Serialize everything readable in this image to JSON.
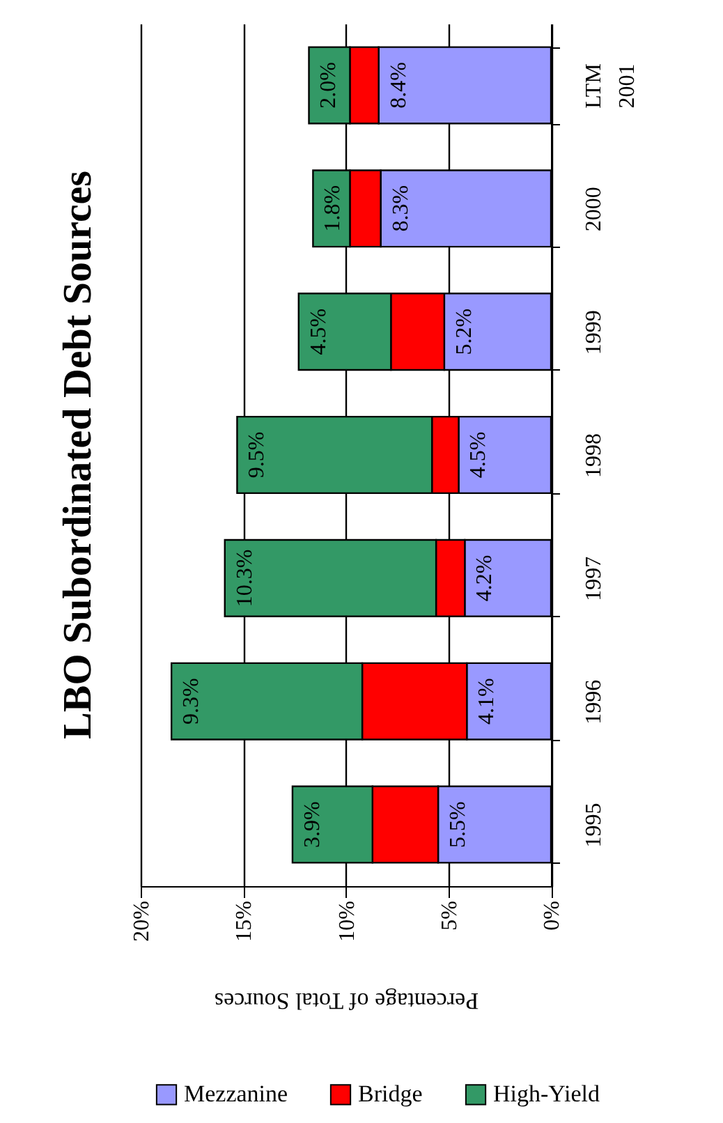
{
  "chart_data": {
    "type": "bar",
    "orientation": "horizontal",
    "title": "LBO Subordinated Debt Sources",
    "xlabel": "Percentage of Total Sources",
    "categories": [
      "LTM\n2001",
      "2000",
      "1999",
      "1998",
      "1997",
      "1996",
      "1995"
    ],
    "stacked": true,
    "series": [
      {
        "name": "Mezzanine",
        "color": "#9999ff",
        "values": [
          8.4,
          8.3,
          5.2,
          4.5,
          4.2,
          4.1,
          5.5
        ],
        "value_labels": [
          "8.4%",
          "8.3%",
          "5.2%",
          "4.5%",
          "4.2%",
          "4.1%",
          "5.5%"
        ]
      },
      {
        "name": "Bridge",
        "color": "#ff0000",
        "values": [
          1.4,
          1.5,
          2.6,
          1.3,
          1.4,
          5.1,
          3.2
        ]
      },
      {
        "name": "High-Yield",
        "color": "#339966",
        "values": [
          2.0,
          1.8,
          4.5,
          9.5,
          10.3,
          9.3,
          3.9
        ],
        "value_labels": [
          "2.0%",
          "1.8%",
          "4.5%",
          "9.5%",
          "10.3%",
          "9.3%",
          "3.9%"
        ]
      }
    ],
    "xlim": [
      20,
      0
    ],
    "xticks": [
      {
        "value": 20,
        "label": "20%"
      },
      {
        "value": 15,
        "label": "15%"
      },
      {
        "value": 10,
        "label": "10%"
      },
      {
        "value": 5,
        "label": "5%"
      },
      {
        "value": 0,
        "label": "0%"
      }
    ],
    "grid": "x",
    "legend": "bottom"
  }
}
